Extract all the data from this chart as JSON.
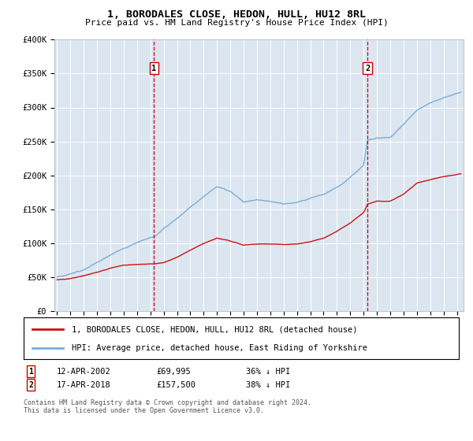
{
  "title": "1, BORODALES CLOSE, HEDON, HULL, HU12 8RL",
  "subtitle": "Price paid vs. HM Land Registry's House Price Index (HPI)",
  "legend_line1": "1, BORODALES CLOSE, HEDON, HULL, HU12 8RL (detached house)",
  "legend_line2": "HPI: Average price, detached house, East Riding of Yorkshire",
  "footnote": "Contains HM Land Registry data © Crown copyright and database right 2024.\nThis data is licensed under the Open Government Licence v3.0.",
  "sale1_label": "1",
  "sale1_date": "12-APR-2002",
  "sale1_price": "£69,995",
  "sale1_hpi": "36% ↓ HPI",
  "sale1_year": 2002.28,
  "sale1_value": 69995,
  "sale2_label": "2",
  "sale2_date": "17-APR-2018",
  "sale2_price": "£157,500",
  "sale2_hpi": "38% ↓ HPI",
  "sale2_year": 2018.29,
  "sale2_value": 157500,
  "hpi_color": "#7aadd4",
  "price_color": "#cc1111",
  "bg_color": "#dce6f1",
  "vline_color": "#cc0000",
  "ylim": [
    0,
    400000
  ],
  "xlim": [
    1994.8,
    2025.5
  ],
  "yticks": [
    0,
    50000,
    100000,
    150000,
    200000,
    250000,
    300000,
    350000,
    400000
  ],
  "ytick_labels": [
    "£0",
    "£50K",
    "£100K",
    "£150K",
    "£200K",
    "£250K",
    "£300K",
    "£350K",
    "£400K"
  ],
  "xticks": [
    1995,
    1996,
    1997,
    1998,
    1999,
    2000,
    2001,
    2002,
    2003,
    2004,
    2005,
    2006,
    2007,
    2008,
    2009,
    2010,
    2011,
    2012,
    2013,
    2014,
    2015,
    2016,
    2017,
    2018,
    2019,
    2020,
    2021,
    2022,
    2023,
    2024,
    2025
  ]
}
